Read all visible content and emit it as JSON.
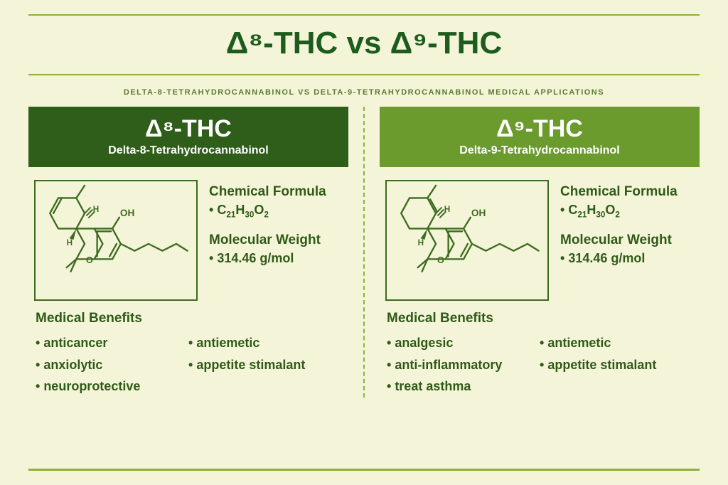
{
  "type": "infographic",
  "colors": {
    "background": "#f4f5d8",
    "text_primary": "#1e5c1e",
    "text_body": "#305a18",
    "rule": "#8fb03e",
    "header_dark": "#2f5d1a",
    "header_light": "#6b9a2d",
    "header_text": "#ffffff",
    "structure_stroke": "#3d6b1f"
  },
  "title": "Δ⁸-THC vs Δ⁹-THC",
  "subtitle": "DELTA-8-TETRAHYDROCANNABINOL VS DELTA-9-TETRAHYDROCANNABINOL MEDICAL APPLICATIONS",
  "left": {
    "short_name": "Δ⁸-THC",
    "full_name": "Delta-8-Tetrahydrocannabinol",
    "formula_label": "Chemical Formula",
    "formula_html": "C<span class='sub'>21</span>H<span class='sub'>30</span>O<span class='sub'>2</span>",
    "weight_label": "Molecular Weight",
    "weight_value": "314.46 g/mol",
    "benefits_label": "Medical Benefits",
    "benefits_col1": [
      "anticancer",
      "anxiolytic",
      "neuroprotective"
    ],
    "benefits_col2": [
      "antiemetic",
      "appetite stimalant"
    ],
    "double_bond_position": "8-9"
  },
  "right": {
    "short_name": "Δ⁹-THC",
    "full_name": "Delta-9-Tetrahydrocannabinol",
    "formula_label": "Chemical Formula",
    "formula_html": "C<span class='sub'>21</span>H<span class='sub'>30</span>O<span class='sub'>2</span>",
    "weight_label": "Molecular Weight",
    "weight_value": "314.46 g/mol",
    "benefits_label": "Medical Benefits",
    "benefits_col1": [
      "analgesic",
      "anti-inflammatory",
      "treat asthma"
    ],
    "benefits_col2": [
      "antiemetic",
      "appetite stimalant"
    ],
    "double_bond_position": "9-10"
  },
  "typography": {
    "title_fontsize": 44,
    "compound_name_fontsize": 34,
    "subtitle_fontsize": 11,
    "label_fontsize": 19,
    "body_fontsize": 18
  }
}
